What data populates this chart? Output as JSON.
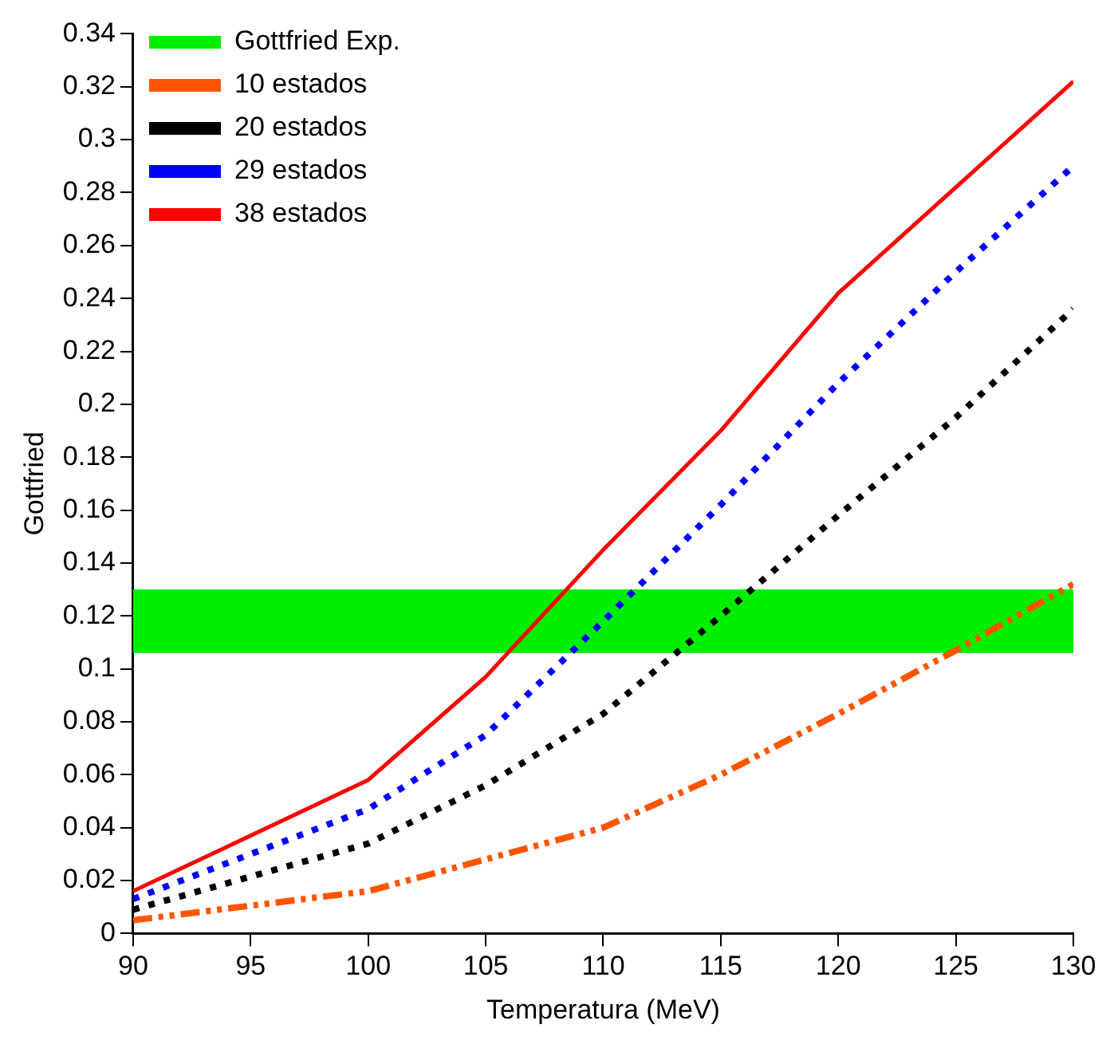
{
  "chart_data": {
    "type": "line",
    "xlabel": "Temperatura (MeV)",
    "ylabel": "Gottfried",
    "x": [
      90,
      100,
      105,
      110,
      115,
      120,
      125,
      130
    ],
    "series": [
      {
        "name": "10 estados",
        "color": "#ff5500",
        "line_style": "dashed",
        "values": [
          0.005,
          0.016,
          0.028,
          0.04,
          0.06,
          0.083,
          0.107,
          0.132
        ]
      },
      {
        "name": "20 estados",
        "color": "#000000",
        "line_style": "dotted",
        "values": [
          0.009,
          0.034,
          0.056,
          0.083,
          0.12,
          0.158,
          0.195,
          0.236
        ]
      },
      {
        "name": "29 estados",
        "color": "#0000ff",
        "line_style": "dotted",
        "values": [
          0.013,
          0.047,
          0.075,
          0.118,
          0.162,
          0.208,
          0.25,
          0.29
        ]
      },
      {
        "name": "38 estados",
        "color": "#ff0000",
        "line_style": "solid",
        "values": [
          0.016,
          0.058,
          0.097,
          0.145,
          0.19,
          0.242,
          0.282,
          0.322
        ]
      }
    ],
    "bands": [
      {
        "axis": "y",
        "from": 0.106,
        "to": 0.13,
        "label": "Gottfried Exp.",
        "color": "#00ee00"
      }
    ],
    "xlim": [
      90,
      130
    ],
    "xticks": [
      90,
      95,
      100,
      105,
      110,
      115,
      120,
      125,
      130
    ],
    "ylim": [
      0,
      0.34
    ],
    "yticks": [
      0,
      0.02,
      0.04,
      0.06,
      0.08,
      0.1,
      0.12,
      0.14,
      0.16,
      0.18,
      0.2,
      0.22,
      0.24,
      0.26,
      0.28,
      0.3,
      0.32,
      0.34
    ],
    "grid": false,
    "legend": "top left",
    "marker": "none"
  }
}
